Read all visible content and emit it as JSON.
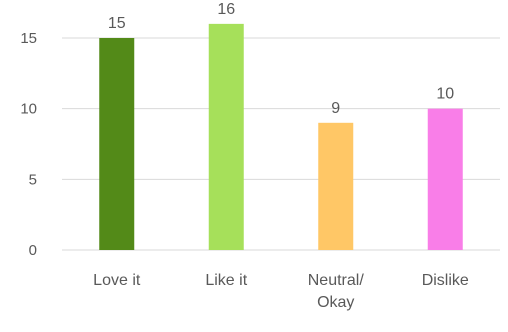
{
  "chart_data": {
    "type": "bar",
    "categories": [
      [
        "Love it"
      ],
      [
        "Like it"
      ],
      [
        "Neutral/",
        "Okay"
      ],
      [
        "Dislike"
      ]
    ],
    "values": [
      15,
      16,
      9,
      10
    ],
    "data_labels": [
      "15",
      "16",
      "9",
      "10"
    ],
    "bar_colors": [
      "#538a18",
      "#a6e05a",
      "#ffc766",
      "#f97ee8"
    ],
    "y_ticks": [
      "0",
      "5",
      "10",
      "15"
    ],
    "y_tick_values": [
      0,
      5,
      10,
      15
    ],
    "ylim": [
      0,
      15
    ],
    "grid": true,
    "legend": "none"
  }
}
